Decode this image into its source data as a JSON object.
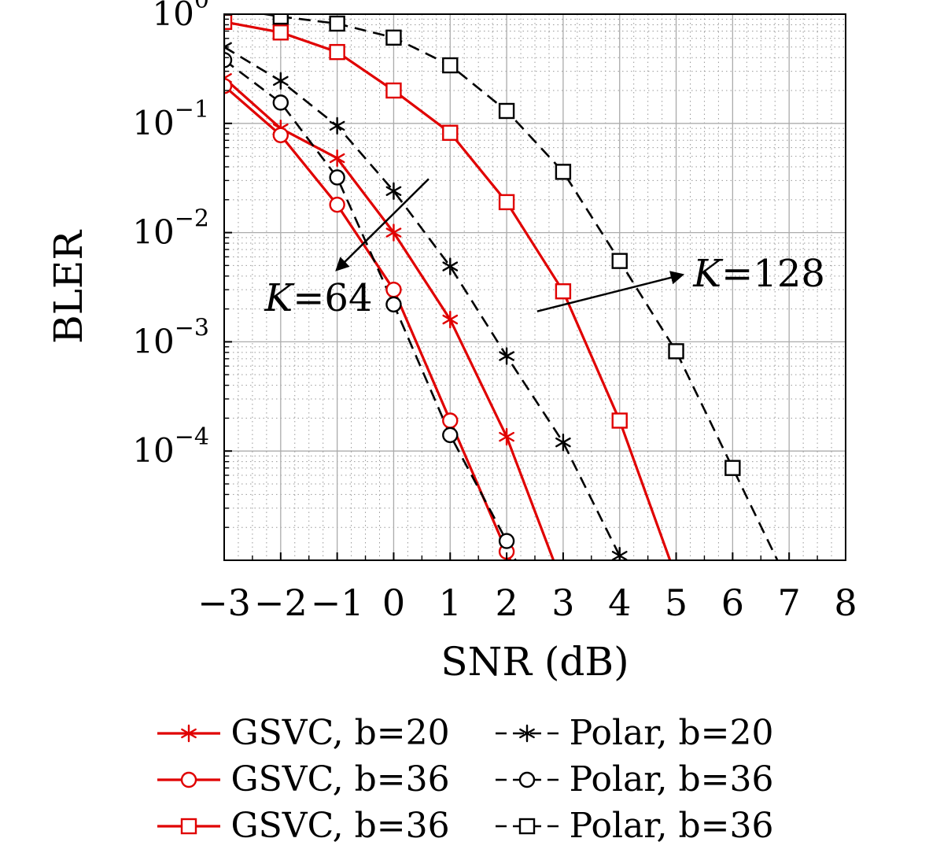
{
  "chart_data": {
    "type": "line",
    "title": "",
    "xlabel": "SNR (dB)",
    "ylabel": "BLER",
    "xlim": [
      -3,
      8
    ],
    "ylim": [
      1e-05,
      1
    ],
    "y_scale": "log",
    "xticks": [
      -3,
      -2,
      -1,
      0,
      1,
      2,
      3,
      4,
      5,
      6,
      7,
      8
    ],
    "ytick_exponents": [
      0,
      -1,
      -2,
      -3,
      -4
    ],
    "grid": "major solid gray, minor dotted",
    "legend_position": "below plot, 2 columns x 3 rows",
    "series": [
      {
        "name": "GSVC, b=20",
        "group": "K=64",
        "color": "#e00000",
        "line": "solid",
        "marker": "asterisk",
        "x": [
          -3,
          -2,
          -1,
          0,
          1,
          2,
          2.9
        ],
        "y": [
          0.26,
          0.09,
          0.048,
          0.01,
          0.0016,
          0.000135,
          8e-06
        ]
      },
      {
        "name": "Polar, b=20",
        "group": "K=64",
        "color": "#000000",
        "line": "dashed",
        "marker": "asterisk",
        "x": [
          -3,
          -2,
          -1,
          0,
          1,
          2,
          3,
          4,
          4.3
        ],
        "y": [
          0.5,
          0.245,
          0.095,
          0.024,
          0.0049,
          0.00074,
          0.00012,
          1.1e-05,
          5e-06
        ]
      },
      {
        "name": "GSVC, b=36",
        "group": "K=64",
        "color": "#e00000",
        "line": "solid",
        "marker": "circle",
        "x": [
          -3,
          -2,
          -1,
          0,
          1,
          2,
          2.25
        ],
        "y": [
          0.22,
          0.078,
          0.018,
          0.003,
          0.00019,
          1.2e-05,
          6e-06
        ]
      },
      {
        "name": "Polar, b=36",
        "group": "K=64",
        "color": "#000000",
        "line": "dashed",
        "marker": "circle",
        "x": [
          -3,
          -2,
          -1,
          0,
          1,
          2,
          2.3
        ],
        "y": [
          0.38,
          0.155,
          0.032,
          0.0022,
          0.00014,
          1.5e-05,
          7e-06
        ]
      },
      {
        "name": "GSVC, b=36",
        "group": "K=128",
        "color": "#e00000",
        "line": "solid",
        "marker": "square",
        "x": [
          -3,
          -2,
          -1,
          0,
          1,
          2,
          3,
          4,
          5
        ],
        "y": [
          0.85,
          0.68,
          0.45,
          0.2,
          0.082,
          0.019,
          0.0029,
          0.00019,
          7e-06
        ]
      },
      {
        "name": "Polar, b=36",
        "group": "K=128",
        "color": "#000000",
        "line": "dashed",
        "marker": "square",
        "x": [
          -3,
          -2,
          -1,
          0,
          1,
          2,
          3,
          4,
          5,
          6,
          7
        ],
        "y": [
          1.15,
          0.95,
          0.82,
          0.61,
          0.34,
          0.13,
          0.036,
          0.0055,
          0.00082,
          7e-05,
          6e-06
        ]
      }
    ],
    "annotations": [
      {
        "text": "K=64",
        "text_x": -1.33,
        "text_y": 0.0025,
        "arrow_from_x": 0.62,
        "arrow_from_y": 0.031,
        "arrow_to_x": -1.0,
        "arrow_to_y": 0.0046
      },
      {
        "text": "K=128",
        "text_x": 6.47,
        "text_y": 0.0042,
        "arrow_from_x": 2.54,
        "arrow_from_y": 0.0019,
        "arrow_to_x": 5.1,
        "arrow_to_y": 0.0041
      }
    ]
  }
}
